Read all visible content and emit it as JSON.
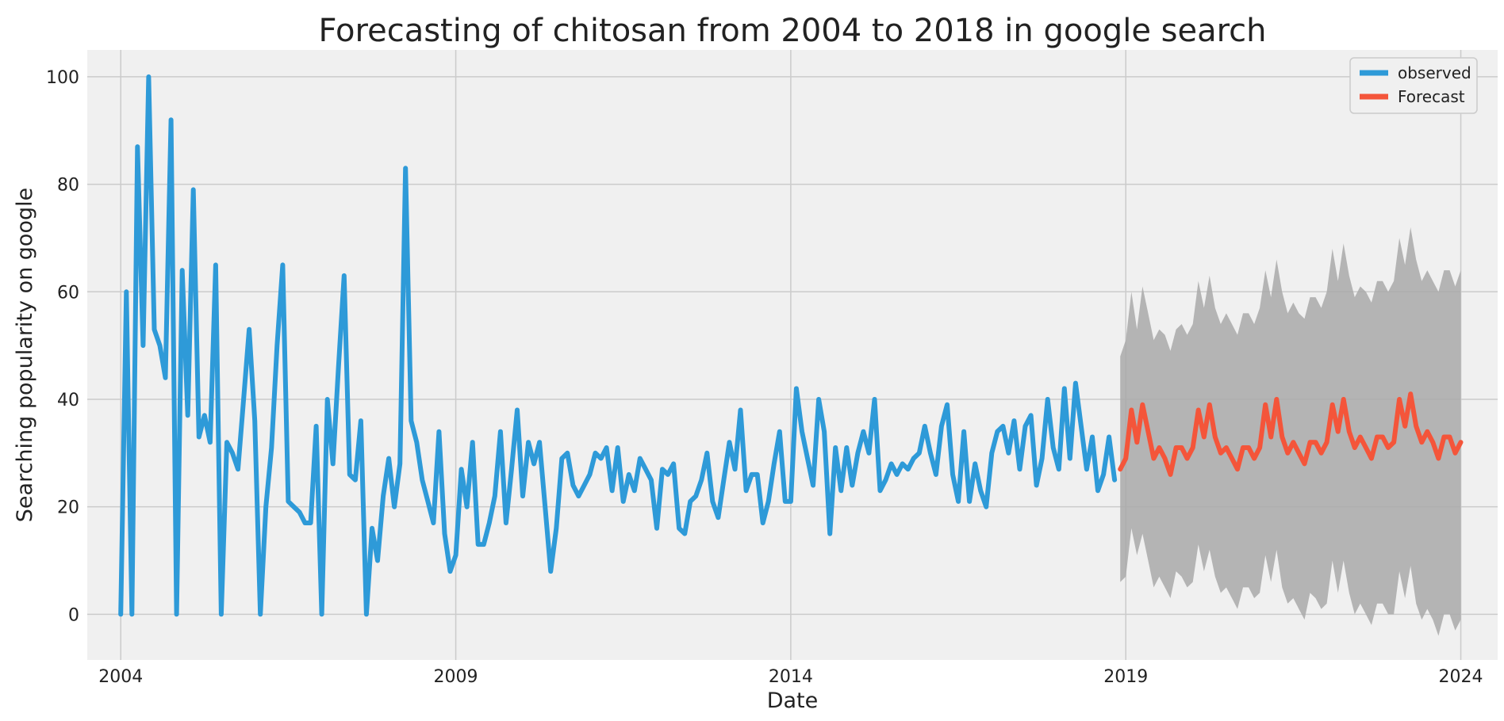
{
  "colors": {
    "background": "#ffffff",
    "plot_background": "#f0f0f0",
    "grid": "#cbcbcb",
    "observed": "#2e9ad8",
    "forecast": "#f4553a",
    "confidence_band": "#a9a9a9",
    "text": "#222222"
  },
  "chart_data": {
    "type": "line",
    "title": "Forecasting of chitosan from 2004 to 2018 in google search",
    "xlabel": "Date",
    "ylabel": "Searching popularity on google",
    "x_ticks": [
      "2004",
      "2009",
      "2014",
      "2019",
      "2024"
    ],
    "y_ticks": [
      "0",
      "20",
      "40",
      "60",
      "80",
      "100"
    ],
    "xlim": [
      2003.5,
      2024.55
    ],
    "ylim": [
      -8.5,
      105
    ],
    "grid": true,
    "legend_position": "top-right",
    "series": [
      {
        "name": "observed",
        "start_date": "2004-01",
        "frequency": "monthly",
        "values": [
          0,
          60,
          0,
          87,
          50,
          100,
          53,
          50,
          44,
          92,
          0,
          64,
          37,
          79,
          33,
          37,
          32,
          65,
          0,
          32,
          30,
          27,
          40,
          53,
          36,
          0,
          20,
          31,
          50,
          65,
          21,
          20,
          19,
          17,
          17,
          35,
          0,
          40,
          28,
          46,
          63,
          26,
          25,
          36,
          0,
          16,
          10,
          22,
          29,
          20,
          28,
          83,
          36,
          32,
          25,
          21,
          17,
          34,
          15,
          8,
          11,
          27,
          20,
          32,
          13,
          13,
          17,
          22,
          34,
          17,
          27,
          38,
          22,
          32,
          28,
          32,
          20,
          8,
          16,
          29,
          30,
          24,
          22,
          24,
          26,
          30,
          29,
          31,
          23,
          31,
          21,
          26,
          23,
          29,
          27,
          25,
          16,
          27,
          26,
          28,
          16,
          15,
          21,
          22,
          25,
          30,
          21,
          18,
          25,
          32,
          27,
          38,
          23,
          26,
          26,
          17,
          21,
          28,
          34,
          21,
          21,
          42,
          34,
          29,
          24,
          40,
          34,
          15,
          31,
          23,
          31,
          24,
          30,
          34,
          30,
          40,
          23,
          25,
          28,
          26,
          28,
          27,
          29,
          30,
          35,
          30,
          26,
          35,
          39,
          26,
          21,
          34,
          21,
          28,
          23,
          20,
          30,
          34,
          35,
          30,
          36,
          27,
          35,
          37,
          24,
          29,
          40,
          31,
          27,
          42,
          29,
          43,
          35,
          27,
          33,
          23,
          26,
          33,
          25
        ]
      },
      {
        "name": "Forecast",
        "start_date": "2018-12",
        "frequency": "monthly",
        "values": [
          27,
          29,
          38,
          32,
          39,
          34,
          29,
          31,
          29,
          26,
          31,
          31,
          29,
          31,
          38,
          33,
          39,
          33,
          30,
          31,
          29,
          27,
          31,
          31,
          29,
          31,
          39,
          33,
          40,
          33,
          30,
          32,
          30,
          28,
          32,
          32,
          30,
          32,
          39,
          34,
          40,
          34,
          31,
          33,
          31,
          29,
          33,
          33,
          31,
          32,
          40,
          35,
          41,
          35,
          32,
          34,
          32,
          29,
          33,
          33,
          30,
          32
        ]
      }
    ],
    "confidence_interval": {
      "start_date": "2018-12",
      "lower": [
        6,
        7,
        16,
        11,
        15,
        10,
        5,
        7,
        5,
        3,
        8,
        7,
        5,
        6,
        13,
        8,
        12,
        7,
        4,
        5,
        3,
        1,
        5,
        5,
        3,
        4,
        11,
        6,
        12,
        5,
        2,
        3,
        1,
        -1,
        4,
        3,
        1,
        2,
        10,
        4,
        10,
        4,
        0,
        2,
        0,
        -2,
        2,
        2,
        0,
        0,
        8,
        3,
        9,
        2,
        -1,
        1,
        -1,
        -4,
        0,
        0,
        -3,
        -1
      ],
      "upper": [
        48,
        51,
        60,
        53,
        61,
        56,
        51,
        53,
        52,
        49,
        53,
        54,
        52,
        54,
        62,
        57,
        63,
        57,
        54,
        56,
        54,
        52,
        56,
        56,
        54,
        57,
        64,
        59,
        66,
        60,
        56,
        58,
        56,
        55,
        59,
        59,
        57,
        60,
        68,
        62,
        69,
        63,
        59,
        61,
        60,
        58,
        62,
        62,
        60,
        62,
        70,
        65,
        72,
        66,
        62,
        64,
        62,
        60,
        64,
        64,
        61,
        64
      ]
    }
  }
}
